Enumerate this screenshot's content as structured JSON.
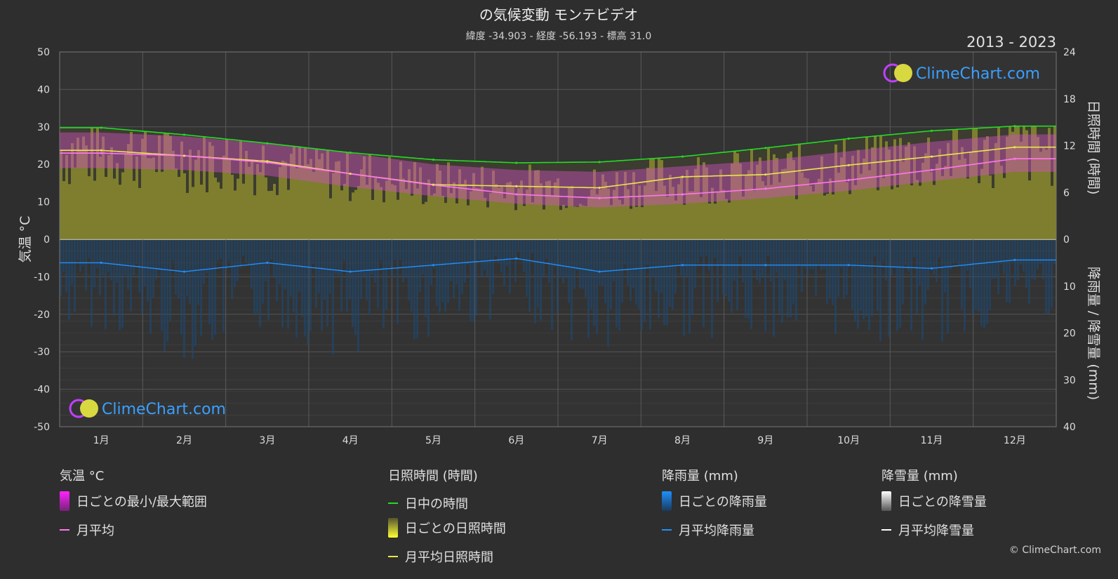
{
  "header": {
    "title": "の気候変動 モンテビデオ",
    "subtitle": "緯度 -34.903 - 経度 -56.193 - 標高 31.0",
    "year_range": "2013 - 2023"
  },
  "watermark": "ClimeChart.com",
  "copyright": "© ClimeChart.com",
  "colors": {
    "background": "#2e2e2e",
    "plot_bg": "#333333",
    "daylight": "#22dd22",
    "sunshine_avg": "#e8e84a",
    "sunshine_bars": "#8a8a2e",
    "temp_range": "#d050c0",
    "temp_avg": "#ff77ee",
    "rain": "#1e90ff",
    "rain_bars": "#1a4a7a",
    "snow": "#ffffff"
  },
  "legend": {
    "temperature": {
      "header": "気温 °C",
      "range_label": "日ごとの最小/最大範囲",
      "avg_label": "月平均"
    },
    "sunshine": {
      "header": "日照時間 (時間)",
      "daylight_label": "日中の時間",
      "daily_label": "日ごとの日照時間",
      "avg_label": "月平均日照時間"
    },
    "rain": {
      "header": "降雨量 (mm)",
      "daily_label": "日ごとの降雨量",
      "avg_label": "月平均降雨量"
    },
    "snow": {
      "header": "降雪量 (mm)",
      "daily_label": "日ごとの降雪量",
      "avg_label": "月平均降雪量"
    }
  },
  "chart_data": {
    "type": "line",
    "categories": [
      "1月",
      "2月",
      "3月",
      "4月",
      "5月",
      "6月",
      "7月",
      "8月",
      "9月",
      "10月",
      "11月",
      "12月"
    ],
    "y_left": {
      "label": "気温 °C",
      "range": [
        -50,
        50
      ],
      "ticks": [
        50,
        40,
        30,
        20,
        10,
        0,
        -10,
        -20,
        -30,
        -40,
        -50
      ]
    },
    "y_right_top": {
      "label": "日照時間 (時間)",
      "range": [
        0,
        24
      ],
      "ticks": [
        24,
        18,
        12,
        6,
        0
      ]
    },
    "y_right_bottom": {
      "label": "降雨量 / 降雪量 (mm)",
      "range": [
        0,
        40
      ],
      "ticks": [
        0,
        10,
        20,
        30,
        40
      ]
    },
    "series": [
      {
        "name": "日中の時間",
        "axis": "sunshine",
        "values": [
          14.3,
          13.4,
          12.3,
          11.1,
          10.2,
          9.8,
          9.9,
          10.6,
          11.7,
          12.9,
          13.9,
          14.5
        ]
      },
      {
        "name": "月平均日照時間",
        "axis": "sunshine",
        "values": [
          11.4,
          10.7,
          10.0,
          8.4,
          7.0,
          6.8,
          6.6,
          8.0,
          8.3,
          9.5,
          10.6,
          11.8
        ]
      },
      {
        "name": "月平均",
        "axis": "temperature",
        "values": [
          23.0,
          22.3,
          20.5,
          17.5,
          14.5,
          12.0,
          11.0,
          12.0,
          13.5,
          15.8,
          18.5,
          21.5
        ]
      },
      {
        "name": "月平均降雨量",
        "axis": "rain",
        "values": [
          5.0,
          6.9,
          5.0,
          6.9,
          5.5,
          4.1,
          6.9,
          5.5,
          5.5,
          5.5,
          6.2,
          4.4
        ]
      },
      {
        "name": "月平均降雪量",
        "axis": "rain",
        "values": [
          0,
          0,
          0,
          0,
          0,
          0,
          0,
          0,
          0,
          0,
          0,
          0
        ]
      }
    ],
    "temp_range": {
      "max": [
        28.5,
        27.5,
        25.5,
        23.0,
        20.0,
        18.5,
        18.0,
        19.5,
        21.0,
        23.5,
        26.0,
        28.0
      ],
      "min": [
        19.0,
        18.5,
        17.0,
        14.0,
        11.5,
        9.5,
        8.5,
        9.5,
        11.0,
        13.0,
        15.5,
        18.0
      ]
    },
    "grid": true
  }
}
